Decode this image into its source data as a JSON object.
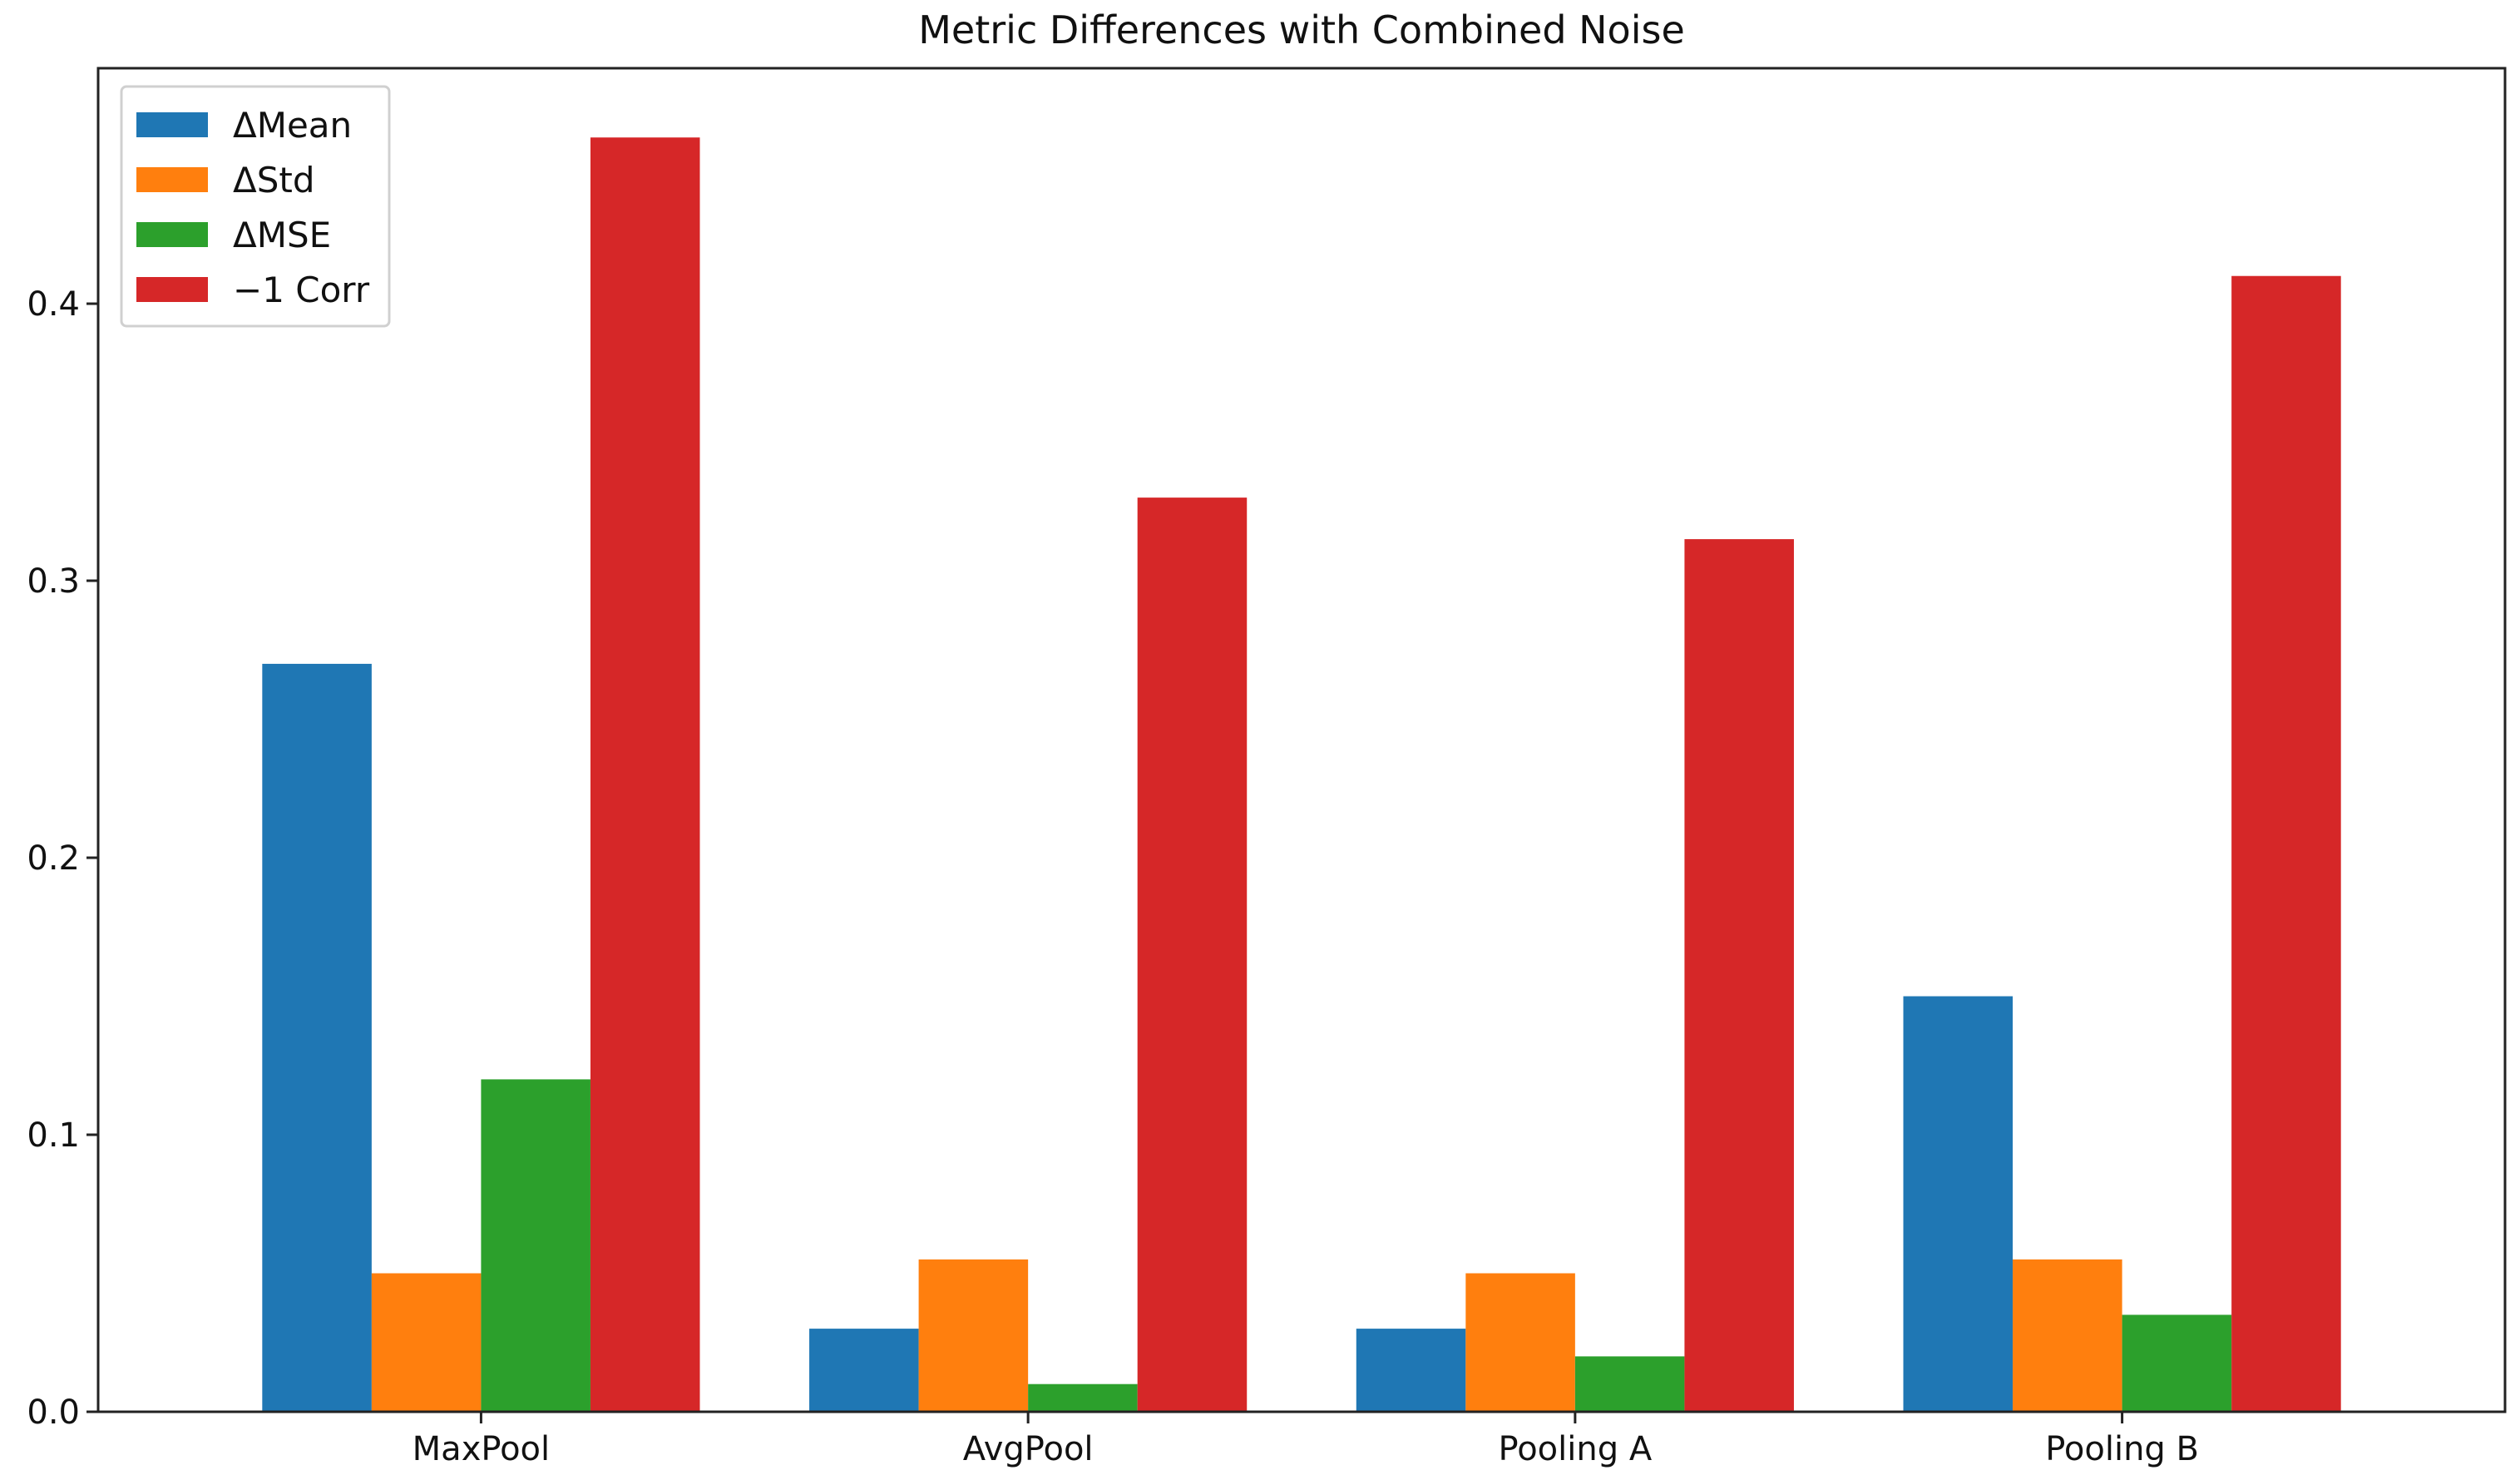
{
  "chart_data": {
    "type": "bar",
    "title": "Metric Differences with Combined Noise",
    "xlabel": "",
    "ylabel": "",
    "categories": [
      "MaxPool",
      "AvgPool",
      "Pooling A",
      "Pooling B"
    ],
    "series": [
      {
        "name": "ΔMean",
        "color": "#1f77b4",
        "values": [
          0.27,
          0.03,
          0.03,
          0.15
        ]
      },
      {
        "name": "ΔStd",
        "color": "#ff7f0e",
        "values": [
          0.05,
          0.055,
          0.05,
          0.055
        ]
      },
      {
        "name": "ΔMSE",
        "color": "#2ca02c",
        "values": [
          0.12,
          0.01,
          0.02,
          0.035
        ]
      },
      {
        "name": "−1 Corr",
        "color": "#d62728",
        "values": [
          0.46,
          0.33,
          0.315,
          0.41
        ]
      }
    ],
    "ylim": [
      0,
      0.485
    ],
    "yticks": [
      {
        "value": 0.0,
        "label": "0.0"
      },
      {
        "value": 0.1,
        "label": "0.1"
      },
      {
        "value": 0.2,
        "label": "0.2"
      },
      {
        "value": 0.3,
        "label": "0.3"
      },
      {
        "value": 0.4,
        "label": "0.4"
      }
    ],
    "grid": false,
    "legend": "top-left"
  }
}
